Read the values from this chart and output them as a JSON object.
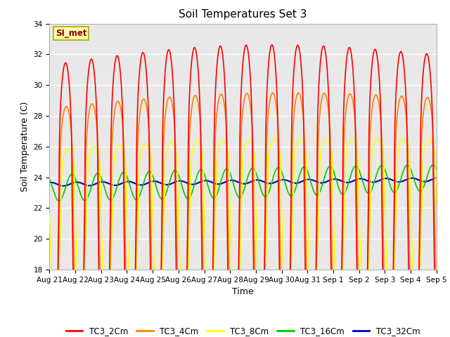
{
  "title": "Soil Temperatures Set 3",
  "xlabel": "Time",
  "ylabel": "Soil Temperature (C)",
  "ylim": [
    18,
    34
  ],
  "yticks": [
    18,
    20,
    22,
    24,
    26,
    28,
    30,
    32,
    34
  ],
  "series": {
    "TC3_2Cm": {
      "color": "#FF0000",
      "lw": 1.2
    },
    "TC3_4Cm": {
      "color": "#FF8000",
      "lw": 1.2
    },
    "TC3_8Cm": {
      "color": "#FFFF00",
      "lw": 1.2
    },
    "TC3_16Cm": {
      "color": "#00CC00",
      "lw": 1.2
    },
    "TC3_32Cm": {
      "color": "#0000CC",
      "lw": 1.5
    }
  },
  "annotation_text": "SI_met",
  "annotation_fg": "#8B0000",
  "annotation_bg": "#FFFFAA",
  "annotation_edge": "#AAAA00",
  "plot_bg": "#E8E8E8",
  "fig_bg": "#FFFFFF",
  "grid_color": "#FFFFFF",
  "xtick_labels": [
    "Aug 21",
    "Aug 22",
    "Aug 23",
    "Aug 24",
    "Aug 25",
    "Aug 26",
    "Aug 27",
    "Aug 28",
    "Aug 29",
    "Aug 30",
    "Aug 31",
    "Sep 1",
    "Sep 2",
    "Sep 3",
    "Sep 4",
    "Sep 5"
  ],
  "title_fontsize": 11,
  "axis_label_fontsize": 9,
  "tick_fontsize": 7.5,
  "legend_fontsize": 8.5
}
